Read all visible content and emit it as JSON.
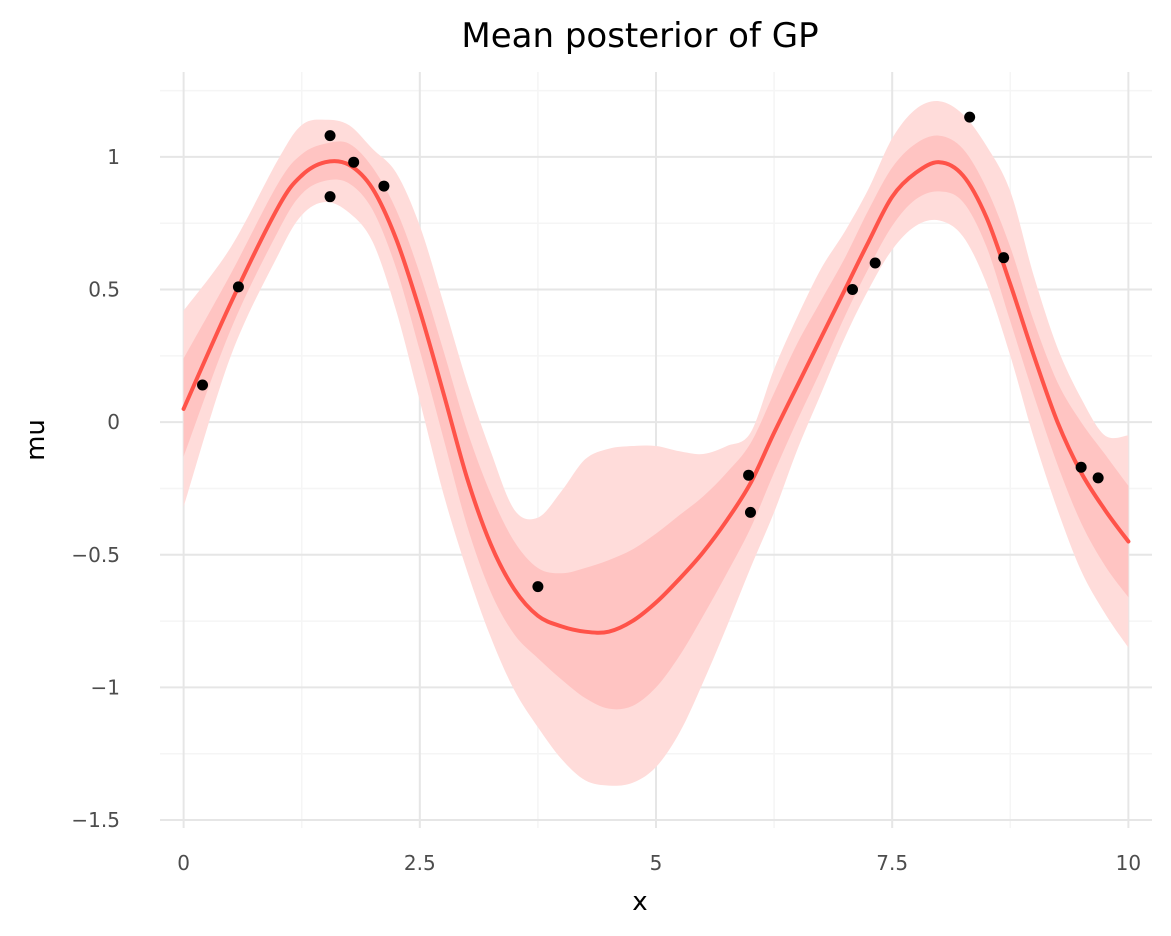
{
  "chart_data": {
    "type": "line",
    "title": "Mean posterior of GP",
    "xlabel": "x",
    "ylabel": "mu",
    "xlim": [
      -0.25,
      10.25
    ],
    "ylim": [
      -1.53,
      1.32
    ],
    "x_ticks": [
      0,
      2.5,
      5,
      7.5,
      10
    ],
    "x_tick_labels": [
      "0",
      "2.5",
      "5",
      "7.5",
      "10"
    ],
    "y_ticks": [
      -1.5,
      -1,
      -0.5,
      0,
      0.5,
      1
    ],
    "y_tick_labels": [
      "−1.5",
      "−1",
      "−0.5",
      "0",
      "0.5",
      "1"
    ],
    "grid": true,
    "legend": "none",
    "colors": {
      "mean_line": "#ff5349",
      "inner_band": "#ffc4c2",
      "outer_band": "#ffdcda",
      "points": "#000000",
      "grid": "#e6e6e6"
    },
    "series": [
      {
        "kind": "mean",
        "x": [
          0,
          0.5,
          1.0,
          1.25,
          1.5,
          1.75,
          2.0,
          2.25,
          2.5,
          2.75,
          3.0,
          3.25,
          3.5,
          3.75,
          4.0,
          4.25,
          4.5,
          4.75,
          5.0,
          5.25,
          5.5,
          5.75,
          6.0,
          6.25,
          6.5,
          6.75,
          7.0,
          7.25,
          7.5,
          7.75,
          8.0,
          8.25,
          8.5,
          8.75,
          9.0,
          9.25,
          9.5,
          9.75,
          10.0
        ],
        "y": [
          0.05,
          0.45,
          0.81,
          0.93,
          0.98,
          0.97,
          0.88,
          0.69,
          0.42,
          0.11,
          -0.21,
          -0.46,
          -0.63,
          -0.73,
          -0.77,
          -0.79,
          -0.79,
          -0.75,
          -0.68,
          -0.59,
          -0.49,
          -0.37,
          -0.23,
          -0.04,
          0.14,
          0.32,
          0.5,
          0.68,
          0.85,
          0.94,
          0.98,
          0.93,
          0.77,
          0.52,
          0.25,
          0.0,
          -0.19,
          -0.33,
          -0.45
        ]
      },
      {
        "kind": "band_inner",
        "x": [
          0,
          0.5,
          1.0,
          1.25,
          1.5,
          1.75,
          2.0,
          2.25,
          2.5,
          2.75,
          3.0,
          3.25,
          3.5,
          3.75,
          4.0,
          4.25,
          4.5,
          4.75,
          5.0,
          5.25,
          5.5,
          5.75,
          6.0,
          6.25,
          6.5,
          6.75,
          7.0,
          7.25,
          7.5,
          7.75,
          8.0,
          8.25,
          8.5,
          8.75,
          9.0,
          9.25,
          9.5,
          9.75,
          10.0
        ],
        "lower": [
          -0.13,
          0.35,
          0.72,
          0.86,
          0.91,
          0.9,
          0.8,
          0.58,
          0.27,
          -0.06,
          -0.39,
          -0.64,
          -0.8,
          -0.89,
          -0.97,
          -1.04,
          -1.08,
          -1.07,
          -1.0,
          -0.88,
          -0.73,
          -0.57,
          -0.4,
          -0.19,
          0.01,
          0.2,
          0.4,
          0.58,
          0.74,
          0.84,
          0.87,
          0.83,
          0.66,
          0.38,
          0.1,
          -0.16,
          -0.38,
          -0.54,
          -0.66
        ],
        "upper": [
          0.24,
          0.56,
          0.9,
          1.01,
          1.05,
          1.05,
          0.96,
          0.8,
          0.56,
          0.27,
          -0.03,
          -0.27,
          -0.45,
          -0.55,
          -0.57,
          -0.55,
          -0.52,
          -0.48,
          -0.42,
          -0.35,
          -0.28,
          -0.19,
          -0.08,
          0.11,
          0.3,
          0.46,
          0.62,
          0.8,
          0.96,
          1.05,
          1.08,
          1.03,
          0.88,
          0.66,
          0.38,
          0.15,
          0.0,
          -0.12,
          -0.24
        ]
      },
      {
        "kind": "band_outer",
        "x": [
          0,
          0.5,
          1.0,
          1.25,
          1.5,
          1.75,
          2.0,
          2.25,
          2.5,
          2.75,
          3.0,
          3.25,
          3.5,
          3.75,
          4.0,
          4.25,
          4.5,
          4.75,
          5.0,
          5.25,
          5.5,
          5.75,
          6.0,
          6.25,
          6.5,
          6.75,
          7.0,
          7.25,
          7.5,
          7.75,
          8.0,
          8.25,
          8.5,
          8.75,
          9.0,
          9.25,
          9.5,
          9.75,
          10.0
        ],
        "lower": [
          -0.32,
          0.25,
          0.63,
          0.78,
          0.83,
          0.79,
          0.68,
          0.42,
          0.08,
          -0.27,
          -0.56,
          -0.81,
          -1.01,
          -1.15,
          -1.27,
          -1.35,
          -1.37,
          -1.36,
          -1.3,
          -1.17,
          -0.98,
          -0.77,
          -0.55,
          -0.34,
          -0.1,
          0.11,
          0.32,
          0.5,
          0.65,
          0.74,
          0.76,
          0.7,
          0.52,
          0.25,
          -0.06,
          -0.33,
          -0.56,
          -0.72,
          -0.85
        ],
        "upper": [
          0.42,
          0.66,
          0.99,
          1.12,
          1.14,
          1.12,
          1.03,
          0.94,
          0.74,
          0.45,
          0.15,
          -0.11,
          -0.33,
          -0.36,
          -0.26,
          -0.14,
          -0.1,
          -0.09,
          -0.09,
          -0.11,
          -0.12,
          -0.09,
          -0.04,
          0.2,
          0.4,
          0.58,
          0.72,
          0.88,
          1.07,
          1.18,
          1.21,
          1.16,
          1.04,
          0.87,
          0.55,
          0.28,
          0.09,
          -0.05,
          -0.05
        ]
      },
      {
        "kind": "points",
        "x": [
          0.2,
          0.58,
          1.55,
          1.55,
          1.8,
          2.12,
          3.75,
          5.98,
          6.0,
          7.08,
          7.32,
          8.32,
          8.68,
          9.5,
          9.68
        ],
        "y": [
          0.14,
          0.51,
          1.08,
          0.85,
          0.98,
          0.89,
          -0.62,
          -0.2,
          -0.34,
          0.5,
          0.6,
          1.15,
          0.62,
          -0.17,
          -0.21
        ]
      }
    ]
  }
}
